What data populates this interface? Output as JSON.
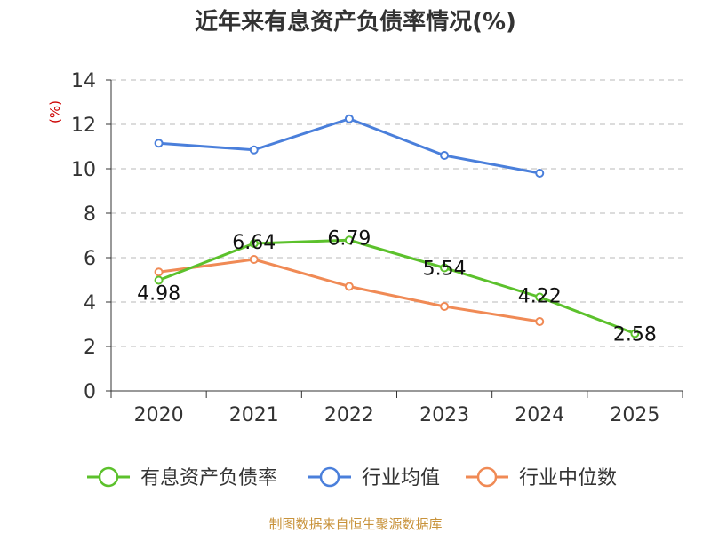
{
  "chart_data": {
    "type": "line",
    "title": "近年来有息资产负债率情况(%)",
    "ylabel": "(%)",
    "xlabel": "",
    "categories": [
      "2020",
      "2021",
      "2022",
      "2023",
      "2024",
      "2025"
    ],
    "ylim": [
      0,
      14
    ],
    "yticks": [
      0,
      2,
      4,
      6,
      8,
      10,
      12,
      14
    ],
    "grid": true,
    "legend_position": "bottom",
    "series": [
      {
        "name": "有息资产负债率",
        "color": "#5cc12c",
        "values": [
          4.98,
          6.64,
          6.79,
          5.54,
          4.22,
          2.58
        ],
        "labels": [
          "4.98",
          "6.64",
          "6.79",
          "5.54",
          "4.22",
          "2.58"
        ]
      },
      {
        "name": "行业均值",
        "color": "#4a7fdb",
        "values": [
          11.15,
          10.85,
          12.25,
          10.6,
          9.8,
          null
        ]
      },
      {
        "name": "行业中位数",
        "color": "#f08a55",
        "values": [
          5.35,
          5.92,
          4.7,
          3.8,
          3.12,
          null
        ]
      }
    ],
    "source": "制图数据来自恒生聚源数据库"
  }
}
